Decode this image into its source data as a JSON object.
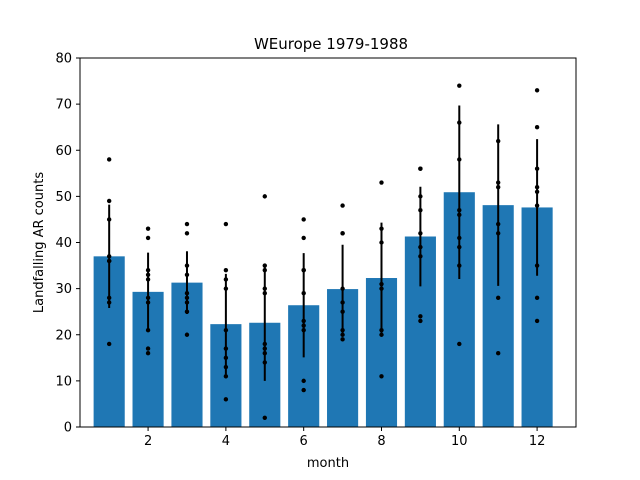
{
  "chart_data": {
    "type": "bar",
    "title": "WEurope 1979-1988",
    "xlabel": "month",
    "ylabel": "Landfalling AR counts",
    "xlim": [
      0.25,
      13
    ],
    "ylim": [
      0,
      80
    ],
    "xticks": [
      2,
      4,
      6,
      8,
      10,
      12
    ],
    "yticks": [
      0,
      10,
      20,
      30,
      40,
      50,
      60,
      70,
      80
    ],
    "bar_color": "#1f77b4",
    "errorbar_color": "#000000",
    "point_color": "#000000",
    "categories": [
      1,
      2,
      3,
      4,
      5,
      6,
      7,
      8,
      9,
      10,
      11,
      12
    ],
    "values": [
      37.0,
      29.3,
      31.3,
      22.3,
      22.6,
      26.4,
      29.9,
      32.3,
      41.3,
      50.9,
      48.1,
      47.6
    ],
    "error": [
      11.2,
      8.5,
      6.8,
      10.9,
      12.6,
      11.3,
      9.6,
      12.0,
      10.8,
      18.8,
      17.5,
      14.8
    ],
    "points": [
      [
        18,
        27,
        28,
        36,
        36,
        37,
        45,
        49,
        58
      ],
      [
        16,
        17,
        21,
        27,
        28,
        32,
        33,
        34,
        41,
        43
      ],
      [
        20,
        25,
        27,
        28,
        29,
        33,
        35,
        42,
        44
      ],
      [
        6,
        11,
        13,
        15,
        17,
        21,
        30,
        32,
        34,
        44
      ],
      [
        2,
        14,
        16,
        17,
        18,
        29,
        30,
        34,
        35,
        50
      ],
      [
        8,
        10,
        21,
        22,
        23,
        29,
        34,
        34,
        41,
        45
      ],
      [
        19,
        20,
        21,
        25,
        27,
        30,
        42,
        42,
        48
      ],
      [
        11,
        20,
        21,
        30,
        31,
        40,
        43,
        53
      ],
      [
        23,
        24,
        37,
        39,
        42,
        47,
        50,
        56,
        56
      ],
      [
        18,
        35,
        39,
        41,
        46,
        47,
        58,
        66,
        74
      ],
      [
        16,
        28,
        42,
        44,
        52,
        53,
        62
      ],
      [
        23,
        28,
        35,
        48,
        51,
        52,
        56,
        65,
        73
      ]
    ]
  }
}
